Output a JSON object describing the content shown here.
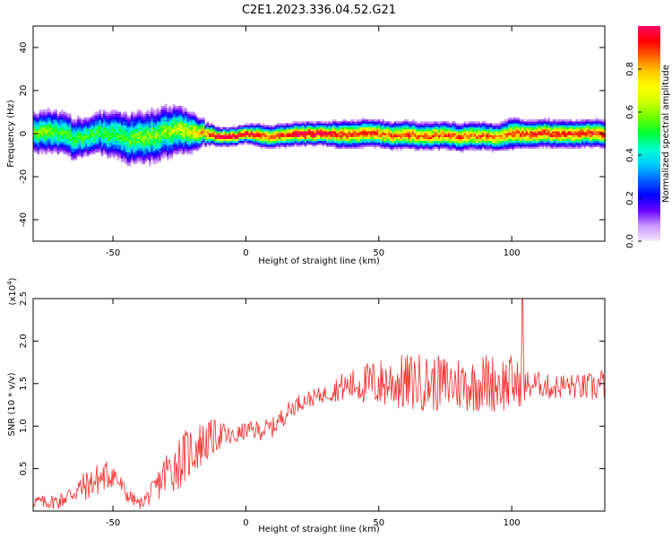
{
  "chart_data": [
    {
      "type": "heatmap",
      "title": "C2E1.2023.336.04.52.G21",
      "xlabel": "Height of straight line (km)",
      "ylabel": "Frequency (Hz)",
      "xlim": [
        -80,
        135
      ],
      "ylim": [
        -50,
        50
      ],
      "x_ticks": [
        -50,
        0,
        50,
        100
      ],
      "y_ticks": [
        -40,
        -20,
        0,
        20,
        40
      ],
      "x_tick_labels": [
        "-50",
        "0",
        "50",
        "100"
      ],
      "y_tick_labels": [
        "-40",
        "-20",
        "0",
        "20",
        "40"
      ],
      "colorbar": {
        "label": "Normalized spectral amplitude",
        "range": [
          0,
          1
        ],
        "ticks": [
          0.0,
          0.2,
          0.4,
          0.6,
          0.8
        ],
        "tick_labels": [
          "0.0",
          "0.2",
          "0.4",
          "0.6",
          "0.8"
        ],
        "colors": [
          "#f4e6ff",
          "#cc99ff",
          "#6600ff",
          "#0000ff",
          "#0066ff",
          "#00ccff",
          "#00ffcc",
          "#00ff33",
          "#66ff00",
          "#ccff00",
          "#ffff00",
          "#ffcc00",
          "#ff6600",
          "#ff0000",
          "#ff0066"
        ]
      },
      "ridge": [
        {
          "x": -80,
          "f": 0.5,
          "spread": 4.5,
          "amp": 0.55
        },
        {
          "x": -75,
          "f": 1.0,
          "spread": 5.0,
          "amp": 0.55
        },
        {
          "x": -70,
          "f": 0.0,
          "spread": 5.0,
          "amp": 0.5
        },
        {
          "x": -65,
          "f": -2.0,
          "spread": 5.0,
          "amp": 0.5
        },
        {
          "x": -60,
          "f": -1.5,
          "spread": 4.5,
          "amp": 0.5
        },
        {
          "x": -55,
          "f": 0.5,
          "spread": 5.0,
          "amp": 0.5
        },
        {
          "x": -50,
          "f": 0.0,
          "spread": 5.5,
          "amp": 0.5
        },
        {
          "x": -45,
          "f": -2.5,
          "spread": 6.0,
          "amp": 0.5
        },
        {
          "x": -40,
          "f": -2.0,
          "spread": 6.0,
          "amp": 0.55
        },
        {
          "x": -35,
          "f": -1.0,
          "spread": 6.0,
          "amp": 0.55
        },
        {
          "x": -30,
          "f": 0.5,
          "spread": 6.0,
          "amp": 0.55
        },
        {
          "x": -25,
          "f": 1.5,
          "spread": 5.5,
          "amp": 0.6
        },
        {
          "x": -20,
          "f": 1.5,
          "spread": 4.5,
          "amp": 0.65
        },
        {
          "x": -15,
          "f": 0.0,
          "spread": 2.5,
          "amp": 0.8
        },
        {
          "x": -10,
          "f": -1.5,
          "spread": 2.0,
          "amp": 0.9
        },
        {
          "x": -5,
          "f": -1.5,
          "spread": 2.0,
          "amp": 0.95
        },
        {
          "x": 0,
          "f": 0.0,
          "spread": 2.0,
          "amp": 0.9
        },
        {
          "x": 5,
          "f": -0.5,
          "spread": 2.5,
          "amp": 0.85
        },
        {
          "x": 10,
          "f": -1.5,
          "spread": 2.5,
          "amp": 0.8
        },
        {
          "x": 15,
          "f": -0.5,
          "spread": 2.5,
          "amp": 0.85
        },
        {
          "x": 20,
          "f": 0.0,
          "spread": 2.5,
          "amp": 0.95
        },
        {
          "x": 25,
          "f": 0.0,
          "spread": 2.5,
          "amp": 0.95
        },
        {
          "x": 30,
          "f": 0.0,
          "spread": 2.5,
          "amp": 0.9
        },
        {
          "x": 35,
          "f": -0.5,
          "spread": 3.0,
          "amp": 0.85
        },
        {
          "x": 40,
          "f": 0.0,
          "spread": 3.0,
          "amp": 0.85
        },
        {
          "x": 45,
          "f": 0.0,
          "spread": 3.0,
          "amp": 0.85
        },
        {
          "x": 50,
          "f": 0.0,
          "spread": 3.0,
          "amp": 0.8
        },
        {
          "x": 55,
          "f": -1.0,
          "spread": 3.0,
          "amp": 0.8
        },
        {
          "x": 60,
          "f": 0.0,
          "spread": 3.0,
          "amp": 0.85
        },
        {
          "x": 65,
          "f": -1.0,
          "spread": 3.0,
          "amp": 0.8
        },
        {
          "x": 70,
          "f": -1.0,
          "spread": 3.0,
          "amp": 0.8
        },
        {
          "x": 75,
          "f": -1.0,
          "spread": 3.0,
          "amp": 0.8
        },
        {
          "x": 80,
          "f": -1.5,
          "spread": 3.0,
          "amp": 0.8
        },
        {
          "x": 85,
          "f": -1.0,
          "spread": 3.0,
          "amp": 0.8
        },
        {
          "x": 90,
          "f": -1.0,
          "spread": 3.0,
          "amp": 0.8
        },
        {
          "x": 95,
          "f": -1.5,
          "spread": 3.0,
          "amp": 0.75
        },
        {
          "x": 100,
          "f": 0.0,
          "spread": 3.5,
          "amp": 0.8
        },
        {
          "x": 105,
          "f": 0.0,
          "spread": 3.0,
          "amp": 0.85
        },
        {
          "x": 110,
          "f": 0.0,
          "spread": 3.0,
          "amp": 0.85
        },
        {
          "x": 115,
          "f": 0.0,
          "spread": 3.0,
          "amp": 0.85
        },
        {
          "x": 120,
          "f": 0.0,
          "spread": 3.0,
          "amp": 0.85
        },
        {
          "x": 125,
          "f": 0.0,
          "spread": 3.0,
          "amp": 0.85
        },
        {
          "x": 130,
          "f": 0.0,
          "spread": 3.0,
          "amp": 0.85
        },
        {
          "x": 135,
          "f": 0.0,
          "spread": 3.0,
          "amp": 0.85
        }
      ]
    },
    {
      "type": "line",
      "xlabel": "Height of straight line (km)",
      "ylabel": "SNR (10 * v/v)",
      "y_scale_label": "(x10",
      "y_scale_exponent": "4",
      "y_scale_close": ")",
      "xlim": [
        -80,
        135
      ],
      "ylim": [
        0,
        2.5
      ],
      "x_ticks": [
        -50,
        0,
        50,
        100
      ],
      "y_ticks": [
        0.5,
        1.0,
        1.5,
        2.0,
        2.5
      ],
      "x_tick_labels": [
        "-50",
        "0",
        "50",
        "100"
      ],
      "y_tick_labels": [
        "0.5",
        "1.0",
        "1.5",
        "2.0",
        "2.5"
      ],
      "color": "#ff2a2a",
      "series": [
        {
          "x": [
            -80,
            -75,
            -70,
            -65,
            -60,
            -55,
            -50,
            -45,
            -40,
            -35,
            -30,
            -25,
            -20,
            -15,
            -10,
            -5,
            0,
            5,
            10,
            15,
            20,
            25,
            30,
            35,
            40,
            45,
            50,
            55,
            60,
            65,
            70,
            75,
            80,
            85,
            90,
            95,
            100,
            105,
            110,
            115,
            120,
            125,
            130,
            135
          ],
          "y": [
            0.12,
            0.1,
            0.12,
            0.22,
            0.3,
            0.38,
            0.45,
            0.2,
            0.08,
            0.22,
            0.45,
            0.58,
            0.72,
            0.82,
            0.9,
            0.86,
            0.95,
            0.95,
            0.98,
            1.15,
            1.28,
            1.33,
            1.38,
            1.45,
            1.48,
            1.5,
            1.5,
            1.52,
            1.5,
            1.52,
            1.5,
            1.5,
            1.5,
            1.48,
            1.52,
            1.5,
            1.5,
            1.47,
            1.5,
            1.45,
            1.48,
            1.46,
            1.45,
            1.5
          ],
          "amp": [
            0.08,
            0.08,
            0.1,
            0.14,
            0.18,
            0.2,
            0.18,
            0.1,
            0.06,
            0.14,
            0.28,
            0.32,
            0.32,
            0.26,
            0.18,
            0.12,
            0.1,
            0.12,
            0.12,
            0.12,
            0.1,
            0.1,
            0.1,
            0.16,
            0.2,
            0.25,
            0.3,
            0.32,
            0.35,
            0.35,
            0.33,
            0.34,
            0.34,
            0.32,
            0.35,
            0.35,
            0.35,
            0.2,
            0.15,
            0.15,
            0.15,
            0.15,
            0.18,
            0.2
          ]
        }
      ],
      "spike": {
        "x": 104,
        "y": 2.5
      }
    }
  ]
}
